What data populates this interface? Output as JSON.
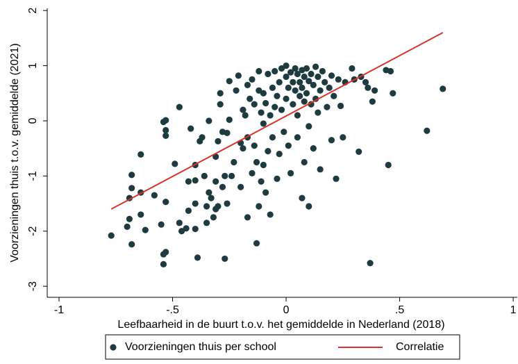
{
  "chart_data": {
    "type": "scatter",
    "xlabel": "Leefbaarheid in de buurt t.o.v. het gemiddelde in Nederland (2018)",
    "ylabel": "Voorzieningen thuis t.o.v. gemiddelde (2021)",
    "xlim": [
      -1.052,
      1.018
    ],
    "ylim": [
      -3.2,
      2.04
    ],
    "xticks": [
      -1,
      {
        "value": -0.5,
        "label": "-.5"
      },
      0,
      {
        "value": 0.5,
        "label": ".5"
      },
      1
    ],
    "yticks": [
      2,
      1,
      0,
      -1,
      -2,
      -3
    ],
    "grid": false,
    "legend": "bottom",
    "series": [
      {
        "name": "Voorzieningen thuis per school",
        "type": "scatter",
        "color": "#1e3b3f",
        "x": [
          -0.77,
          -0.7,
          -0.68,
          -0.69,
          -0.69,
          -0.68,
          -0.68,
          -0.64,
          -0.64,
          -0.62,
          -0.64,
          -0.58,
          -0.55,
          -0.54,
          -0.53,
          -0.53,
          -0.53,
          -0.53,
          -0.54,
          -0.53,
          -0.54,
          -0.49,
          -0.47,
          -0.47,
          -0.46,
          -0.44,
          -0.43,
          -0.43,
          -0.42,
          -0.4,
          -0.4,
          -0.4,
          -0.4,
          -0.39,
          -0.38,
          -0.37,
          -0.36,
          -0.35,
          -0.35,
          -0.34,
          -0.33,
          -0.34,
          -0.32,
          -0.31,
          -0.31,
          -0.31,
          -0.3,
          -0.3,
          -0.29,
          -0.29,
          -0.28,
          -0.28,
          -0.27,
          -0.27,
          -0.26,
          -0.26,
          -0.25,
          -0.25,
          -0.24,
          -0.23,
          -0.22,
          -0.21,
          -0.2,
          -0.2,
          -0.19,
          -0.19,
          -0.18,
          -0.17,
          -0.17,
          -0.17,
          -0.16,
          -0.15,
          -0.15,
          -0.14,
          -0.14,
          -0.13,
          -0.13,
          -0.12,
          -0.12,
          -0.12,
          -0.11,
          -0.11,
          -0.1,
          -0.1,
          -0.1,
          -0.09,
          -0.09,
          -0.08,
          -0.08,
          -0.07,
          -0.07,
          -0.06,
          -0.06,
          -0.05,
          -0.05,
          -0.04,
          -0.04,
          -0.03,
          -0.03,
          -0.02,
          -0.02,
          -0.01,
          0,
          0,
          0,
          0.01,
          0.01,
          0.02,
          0.02,
          0.03,
          0.03,
          0.04,
          0.04,
          0.05,
          0.05,
          0.05,
          0.06,
          0.06,
          0.07,
          0.07,
          0.07,
          0.08,
          0.08,
          0.08,
          0.09,
          0.09,
          0.1,
          0.1,
          0.1,
          0.11,
          0.11,
          0.12,
          0.12,
          0.13,
          0.13,
          0.14,
          0.14,
          0.15,
          0.15,
          0.16,
          0.17,
          0.18,
          0.19,
          0.2,
          0.2,
          0.21,
          0.22,
          0.23,
          0.24,
          0.25,
          0.26,
          0.29,
          0.3,
          0.32,
          0.33,
          0.35,
          0.36,
          0.37,
          0.38,
          0.39,
          0.44,
          0.45,
          0.46,
          0.47,
          0.62,
          0.69
        ],
        "values": [
          -2.08,
          -1.92,
          -2.24,
          -1.78,
          -1.4,
          -1.22,
          -0.98,
          -0.61,
          -1.3,
          -1.98,
          -1.7,
          -1.35,
          -1.88,
          -0.02,
          0.01,
          -0.17,
          -0.27,
          -1.47,
          -2.42,
          -2.38,
          -2.6,
          -0.78,
          0.25,
          -1.85,
          -2.0,
          -1.95,
          -1.63,
          -1.1,
          -0.14,
          -1.96,
          -1.5,
          -1.08,
          -0.8,
          -2.48,
          -0.37,
          -0.3,
          -1.0,
          -1.85,
          -1.55,
          -1.3,
          -1.4,
          0.0,
          -1.75,
          -1.6,
          -1.1,
          -0.65,
          -0.37,
          -1.55,
          0.5,
          0.3,
          -0.2,
          -1.2,
          -2.5,
          -1.0,
          -0.22,
          -1.5,
          0.02,
          0.72,
          -1.0,
          -0.75,
          0.55,
          0.82,
          -0.4,
          -1.2,
          0.2,
          -0.5,
          0.1,
          -1.75,
          0.65,
          -0.3,
          0.4,
          -0.95,
          0.75,
          -0.45,
          0.3,
          -0.75,
          -2.22,
          0.55,
          -1.55,
          0.9,
          0.15,
          -1.1,
          -0.05,
          0.5,
          -0.8,
          0.32,
          -1.3,
          -0.55,
          0.85,
          0.1,
          -1.7,
          0.6,
          -0.3,
          0.9,
          0.25,
          -1.05,
          0.45,
          0.7,
          -0.6,
          0.95,
          0.2,
          -0.2,
          0.8,
          1.0,
          0.4,
          -0.45,
          0.6,
          0.88,
          -0.95,
          0.7,
          0.3,
          0.95,
          0.55,
          0.85,
          0.1,
          -0.3,
          0.7,
          0.45,
          0.92,
          0.6,
          -1.4,
          0.8,
          0.35,
          -0.75,
          0.95,
          0.5,
          0.72,
          -0.1,
          -1.55,
          0.85,
          0.3,
          0.65,
          -0.5,
          0.98,
          0.4,
          0.8,
          0.15,
          -0.88,
          0.55,
          0.9,
          0.7,
          0.25,
          0.6,
          0.82,
          -0.35,
          0.45,
          -1.05,
          0.75,
          0.27,
          -0.3,
          0.7,
          0.95,
          0.75,
          -0.56,
          0.8,
          0.7,
          0.6,
          -2.58,
          0.35,
          0.55,
          0.92,
          -0.8,
          0.9,
          0.5,
          -0.18,
          0.58
        ]
      },
      {
        "name": "Correlatie",
        "type": "line",
        "color": "#d7332b",
        "x": [
          -0.77,
          0.69
        ],
        "values": [
          -1.6,
          1.6
        ]
      }
    ]
  }
}
